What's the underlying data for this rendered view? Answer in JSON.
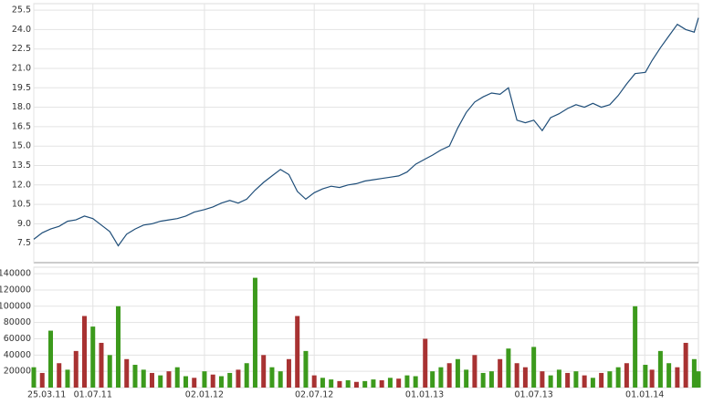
{
  "chart_data": [
    {
      "type": "line",
      "color": "#1f4e79",
      "x": [
        "2011-03-25",
        "2011-04-08",
        "2011-04-22",
        "2011-05-06",
        "2011-05-20",
        "2011-06-03",
        "2011-06-17",
        "2011-07-01",
        "2011-07-15",
        "2011-07-29",
        "2011-08-12",
        "2011-08-26",
        "2011-09-09",
        "2011-09-23",
        "2011-10-07",
        "2011-10-21",
        "2011-11-04",
        "2011-11-18",
        "2011-12-02",
        "2011-12-16",
        "2012-01-02",
        "2012-01-16",
        "2012-01-30",
        "2012-02-13",
        "2012-02-27",
        "2012-03-12",
        "2012-03-26",
        "2012-04-09",
        "2012-04-23",
        "2012-05-07",
        "2012-05-21",
        "2012-06-04",
        "2012-06-18",
        "2012-07-02",
        "2012-07-16",
        "2012-07-30",
        "2012-08-13",
        "2012-08-27",
        "2012-09-10",
        "2012-09-24",
        "2012-10-08",
        "2012-10-22",
        "2012-11-05",
        "2012-11-19",
        "2012-12-03",
        "2012-12-17",
        "2013-01-02",
        "2013-01-14",
        "2013-01-28",
        "2013-02-11",
        "2013-02-25",
        "2013-03-11",
        "2013-03-25",
        "2013-04-08",
        "2013-04-22",
        "2013-05-06",
        "2013-05-20",
        "2013-06-03",
        "2013-06-17",
        "2013-07-01",
        "2013-07-15",
        "2013-07-29",
        "2013-08-12",
        "2013-08-26",
        "2013-09-09",
        "2013-09-23",
        "2013-10-07",
        "2013-10-21",
        "2013-11-04",
        "2013-11-18",
        "2013-12-02",
        "2013-12-16",
        "2014-01-02",
        "2014-01-13",
        "2014-01-27",
        "2014-02-10",
        "2014-02-24",
        "2014-03-10",
        "2014-03-24",
        "2014-03-31"
      ],
      "values": [
        7.8,
        8.3,
        8.6,
        8.8,
        9.2,
        9.3,
        9.6,
        9.4,
        8.9,
        8.4,
        7.3,
        8.2,
        8.6,
        8.9,
        9.0,
        9.2,
        9.3,
        9.4,
        9.6,
        9.9,
        10.1,
        10.3,
        10.6,
        10.8,
        10.6,
        10.9,
        11.6,
        12.2,
        12.7,
        13.2,
        12.8,
        11.5,
        10.9,
        11.4,
        11.7,
        11.9,
        11.8,
        12.0,
        12.1,
        12.3,
        12.4,
        12.5,
        12.6,
        12.7,
        13.0,
        13.6,
        14.0,
        14.3,
        14.7,
        15.0,
        16.4,
        17.6,
        18.4,
        18.8,
        19.1,
        19.0,
        19.5,
        17.0,
        16.8,
        17.0,
        16.2,
        17.2,
        17.5,
        17.9,
        18.2,
        18.0,
        18.3,
        18.0,
        18.2,
        18.9,
        19.8,
        20.6,
        20.7,
        21.6,
        22.6,
        23.5,
        24.4,
        24.0,
        23.8,
        24.9
      ],
      "xlim": [
        "2011-03-25",
        "2014-03-31"
      ],
      "ylim": [
        6,
        26
      ],
      "yticks": [
        7.5,
        {
          "value": 9,
          "label": "9.0"
        },
        10.5,
        {
          "value": 12,
          "label": "12.0"
        },
        13.5,
        {
          "value": 15,
          "label": "15.0"
        },
        16.5,
        {
          "value": 18,
          "label": "18.0"
        },
        19.5,
        {
          "value": 21,
          "label": "21.0"
        },
        22.5,
        {
          "value": 24,
          "label": "24.0"
        },
        25.5
      ],
      "grid": true
    },
    {
      "type": "bar",
      "x": [
        "2011-03-25",
        "2011-04-08",
        "2011-04-22",
        "2011-05-06",
        "2011-05-20",
        "2011-06-03",
        "2011-06-17",
        "2011-07-01",
        "2011-07-15",
        "2011-07-29",
        "2011-08-12",
        "2011-08-26",
        "2011-09-09",
        "2011-09-23",
        "2011-10-07",
        "2011-10-21",
        "2011-11-04",
        "2011-11-18",
        "2011-12-02",
        "2011-12-16",
        "2012-01-02",
        "2012-01-16",
        "2012-01-30",
        "2012-02-13",
        "2012-02-27",
        "2012-03-12",
        "2012-03-26",
        "2012-04-09",
        "2012-04-23",
        "2012-05-07",
        "2012-05-21",
        "2012-06-04",
        "2012-06-18",
        "2012-07-02",
        "2012-07-16",
        "2012-07-30",
        "2012-08-13",
        "2012-08-27",
        "2012-09-10",
        "2012-09-24",
        "2012-10-08",
        "2012-10-22",
        "2012-11-05",
        "2012-11-19",
        "2012-12-03",
        "2012-12-17",
        "2013-01-02",
        "2013-01-14",
        "2013-01-28",
        "2013-02-11",
        "2013-02-25",
        "2013-03-11",
        "2013-03-25",
        "2013-04-08",
        "2013-04-22",
        "2013-05-06",
        "2013-05-20",
        "2013-06-03",
        "2013-06-17",
        "2013-07-01",
        "2013-07-15",
        "2013-07-29",
        "2013-08-12",
        "2013-08-26",
        "2013-09-09",
        "2013-09-23",
        "2013-10-07",
        "2013-10-21",
        "2013-11-04",
        "2013-11-18",
        "2013-12-02",
        "2013-12-16",
        "2014-01-02",
        "2014-01-13",
        "2014-01-27",
        "2014-02-10",
        "2014-02-24",
        "2014-03-10",
        "2014-03-24",
        "2014-03-31"
      ],
      "values": [
        25000,
        18000,
        70000,
        30000,
        22000,
        45000,
        88000,
        75000,
        55000,
        40000,
        100000,
        35000,
        28000,
        22000,
        18000,
        15000,
        20000,
        25000,
        14000,
        12000,
        20000,
        16000,
        14000,
        18000,
        22000,
        30000,
        135000,
        40000,
        25000,
        20000,
        35000,
        88000,
        45000,
        15000,
        12000,
        10000,
        8000,
        9000,
        7000,
        8000,
        10000,
        9000,
        12000,
        11000,
        15000,
        14000,
        60000,
        20000,
        25000,
        30000,
        35000,
        22000,
        40000,
        18000,
        20000,
        35000,
        48000,
        30000,
        25000,
        50000,
        20000,
        15000,
        22000,
        18000,
        20000,
        15000,
        12000,
        18000,
        20000,
        25000,
        30000,
        100000,
        28000,
        22000,
        45000,
        30000,
        25000,
        55000,
        35000,
        20000
      ],
      "colors": [
        "#3c9a1c",
        "#a83232",
        "#3c9a1c",
        "#a83232",
        "#3c9a1c",
        "#a83232",
        "#a83232",
        "#3c9a1c",
        "#a83232",
        "#3c9a1c",
        "#3c9a1c",
        "#a83232",
        "#3c9a1c",
        "#3c9a1c",
        "#a83232",
        "#3c9a1c",
        "#a83232",
        "#3c9a1c",
        "#3c9a1c",
        "#a83232",
        "#3c9a1c",
        "#a83232",
        "#3c9a1c",
        "#3c9a1c",
        "#a83232",
        "#3c9a1c",
        "#3c9a1c",
        "#a83232",
        "#3c9a1c",
        "#3c9a1c",
        "#a83232",
        "#a83232",
        "#3c9a1c",
        "#a83232",
        "#3c9a1c",
        "#3c9a1c",
        "#a83232",
        "#3c9a1c",
        "#a83232",
        "#3c9a1c",
        "#3c9a1c",
        "#a83232",
        "#3c9a1c",
        "#a83232",
        "#3c9a1c",
        "#3c9a1c",
        "#a83232",
        "#3c9a1c",
        "#3c9a1c",
        "#a83232",
        "#3c9a1c",
        "#3c9a1c",
        "#a83232",
        "#3c9a1c",
        "#3c9a1c",
        "#a83232",
        "#3c9a1c",
        "#a83232",
        "#a83232",
        "#3c9a1c",
        "#a83232",
        "#3c9a1c",
        "#3c9a1c",
        "#a83232",
        "#3c9a1c",
        "#a83232",
        "#3c9a1c",
        "#a83232",
        "#3c9a1c",
        "#3c9a1c",
        "#a83232",
        "#3c9a1c",
        "#3c9a1c",
        "#a83232",
        "#3c9a1c",
        "#3c9a1c",
        "#a83232",
        "#a83232",
        "#3c9a1c",
        "#3c9a1c"
      ],
      "xlim": [
        "2011-03-25",
        "2014-03-31"
      ],
      "ylim": [
        0,
        148000
      ],
      "yticks": [
        20000,
        40000,
        60000,
        80000,
        100000,
        120000,
        140000
      ],
      "xticks": [
        {
          "value": "2011-03-25",
          "label": "25.03.11"
        },
        {
          "value": "2011-07-01",
          "label": "01.07.11"
        },
        {
          "value": "2012-01-02",
          "label": "02.01.12"
        },
        {
          "value": "2012-07-02",
          "label": "02.07.12"
        },
        {
          "value": "2013-01-01",
          "label": "01.01.13"
        },
        {
          "value": "2013-07-01",
          "label": "01.07.13"
        },
        {
          "value": "2014-01-01",
          "label": "01.01.14"
        }
      ],
      "grid": true
    }
  ]
}
